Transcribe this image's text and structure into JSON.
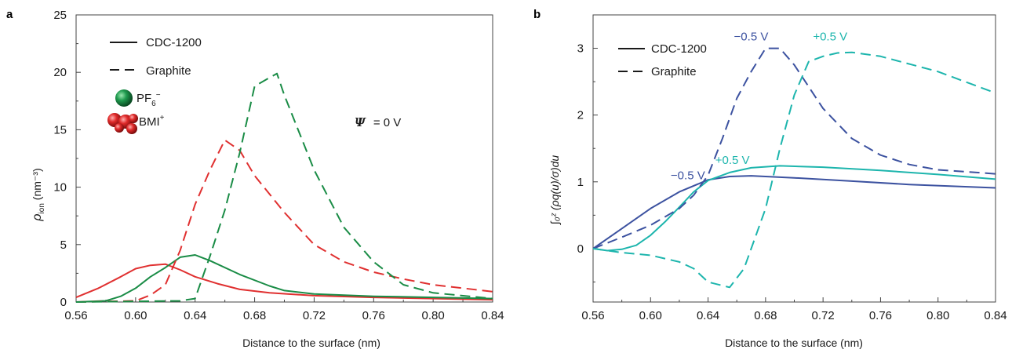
{
  "colors": {
    "red": "#e03030",
    "green": "#1a8c46",
    "blue": "#3c52a0",
    "teal": "#1db5ad",
    "axis": "#444444"
  },
  "chart_data": [
    {
      "panel": "a",
      "type": "line",
      "xlabel": "Distance to the surface (nm)",
      "ylabel_main": "ρ",
      "ylabel_sub": "ion",
      "ylabel_unit": " (nm⁻³)",
      "xlim": [
        0.56,
        0.84
      ],
      "ylim": [
        0,
        25
      ],
      "xticks": [
        "0.56",
        "0.60",
        "0.64",
        "0.68",
        "0.72",
        "0.76",
        "0.80",
        "0.84"
      ],
      "yticks": [
        "0",
        "5",
        "10",
        "15",
        "20",
        "25"
      ],
      "legend": {
        "position": "top-left",
        "solid_label": "CDC-1200",
        "dashed_label": "Graphite",
        "ion1_main": "PF",
        "ion1_sub": "6",
        "ion1_sup": "−",
        "ion2_main": "BMI",
        "ion2_sup": "+"
      },
      "annotation": {
        "psi_symbol": "Ψ",
        "psi_value": " = 0 V"
      },
      "series": [
        {
          "color": "red",
          "dash": false,
          "x": [
            0.56,
            0.575,
            0.59,
            0.6,
            0.61,
            0.62,
            0.63,
            0.64,
            0.655,
            0.67,
            0.69,
            0.72,
            0.76,
            0.8,
            0.84
          ],
          "y": [
            0.4,
            1.2,
            2.2,
            2.9,
            3.2,
            3.3,
            2.8,
            2.2,
            1.6,
            1.1,
            0.8,
            0.55,
            0.4,
            0.3,
            0.2
          ]
        },
        {
          "color": "green",
          "dash": false,
          "x": [
            0.56,
            0.58,
            0.59,
            0.6,
            0.61,
            0.62,
            0.63,
            0.64,
            0.65,
            0.67,
            0.69,
            0.7,
            0.72,
            0.76,
            0.8,
            0.84
          ],
          "y": [
            0,
            0.1,
            0.5,
            1.2,
            2.2,
            3.0,
            3.9,
            4.1,
            3.6,
            2.4,
            1.4,
            1.0,
            0.7,
            0.5,
            0.4,
            0.3
          ]
        },
        {
          "color": "red",
          "dash": true,
          "x": [
            0.56,
            0.6,
            0.61,
            0.62,
            0.63,
            0.64,
            0.65,
            0.66,
            0.67,
            0.68,
            0.7,
            0.72,
            0.74,
            0.76,
            0.78,
            0.8,
            0.84
          ],
          "y": [
            0,
            0.1,
            0.6,
            1.5,
            4.5,
            8.5,
            11.5,
            14.1,
            13.2,
            11.0,
            7.8,
            5.0,
            3.5,
            2.6,
            2.0,
            1.5,
            0.9
          ]
        },
        {
          "color": "green",
          "dash": true,
          "x": [
            0.56,
            0.63,
            0.64,
            0.65,
            0.66,
            0.67,
            0.68,
            0.695,
            0.7,
            0.72,
            0.74,
            0.76,
            0.78,
            0.8,
            0.84
          ],
          "y": [
            0,
            0.1,
            0.3,
            4.0,
            8.0,
            13.0,
            18.8,
            19.9,
            18.0,
            11.5,
            6.5,
            3.5,
            1.5,
            0.8,
            0.3
          ]
        }
      ]
    },
    {
      "panel": "b",
      "type": "line",
      "xlabel": "Distance to the surface (nm)",
      "ylabel": "∫₀ᶻ (ρq(u)/σ)du",
      "xlim": [
        0.56,
        0.84
      ],
      "ylim": [
        -0.8,
        3.5
      ],
      "xticks": [
        "0.56",
        "0.60",
        "0.64",
        "0.68",
        "0.72",
        "0.76",
        "0.80",
        "0.84"
      ],
      "yticks": [
        "0",
        "1",
        "2",
        "3"
      ],
      "legend": {
        "position": "top-left",
        "solid_label": "CDC-1200",
        "dashed_label": "Graphite"
      },
      "annotations": [
        {
          "text": "−0.5 V",
          "color": "blue",
          "at": [
            0.658,
            3.12
          ]
        },
        {
          "text": "+0.5 V",
          "color": "teal",
          "at": [
            0.713,
            3.12
          ]
        },
        {
          "text": "−0.5 V",
          "color": "blue",
          "at": [
            0.614,
            1.04
          ]
        },
        {
          "text": "+0.5 V",
          "color": "teal",
          "at": [
            0.645,
            1.27
          ]
        }
      ],
      "series": [
        {
          "name": "−0.5 V",
          "color": "blue",
          "dash": false,
          "x": [
            0.56,
            0.58,
            0.6,
            0.62,
            0.64,
            0.655,
            0.67,
            0.7,
            0.74,
            0.78,
            0.84
          ],
          "y": [
            0,
            0.3,
            0.6,
            0.85,
            1.03,
            1.08,
            1.09,
            1.06,
            1.01,
            0.96,
            0.91
          ]
        },
        {
          "name": "+0.5 V",
          "color": "teal",
          "dash": false,
          "x": [
            0.56,
            0.57,
            0.58,
            0.59,
            0.6,
            0.61,
            0.62,
            0.63,
            0.64,
            0.655,
            0.67,
            0.69,
            0.72,
            0.76,
            0.8,
            0.84
          ],
          "y": [
            0,
            -0.03,
            -0.01,
            0.05,
            0.2,
            0.4,
            0.62,
            0.85,
            1.02,
            1.14,
            1.21,
            1.24,
            1.22,
            1.17,
            1.11,
            1.04
          ]
        },
        {
          "name": "−0.5 V",
          "color": "blue",
          "dash": true,
          "x": [
            0.56,
            0.58,
            0.6,
            0.62,
            0.63,
            0.64,
            0.65,
            0.66,
            0.67,
            0.68,
            0.69,
            0.7,
            0.72,
            0.74,
            0.76,
            0.78,
            0.8,
            0.84
          ],
          "y": [
            0,
            0.17,
            0.35,
            0.6,
            0.8,
            1.1,
            1.65,
            2.25,
            2.65,
            3.0,
            3.0,
            2.75,
            2.1,
            1.65,
            1.4,
            1.26,
            1.18,
            1.12
          ]
        },
        {
          "name": "+0.5 V",
          "color": "teal",
          "dash": true,
          "x": [
            0.56,
            0.58,
            0.6,
            0.62,
            0.63,
            0.64,
            0.655,
            0.665,
            0.68,
            0.69,
            0.7,
            0.71,
            0.72,
            0.73,
            0.74,
            0.76,
            0.8,
            0.84
          ],
          "y": [
            0,
            -0.06,
            -0.1,
            -0.2,
            -0.3,
            -0.5,
            -0.58,
            -0.3,
            0.6,
            1.5,
            2.3,
            2.8,
            2.88,
            2.93,
            2.94,
            2.88,
            2.65,
            2.33
          ]
        }
      ]
    }
  ]
}
